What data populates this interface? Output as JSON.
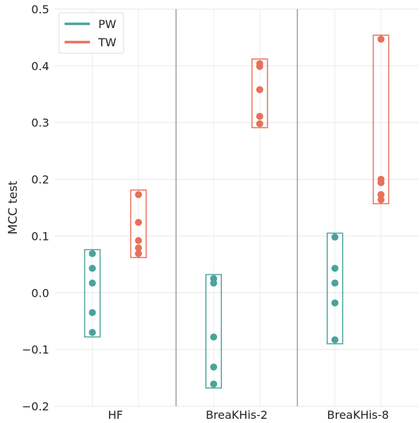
{
  "chart_data": {
    "type": "scatter",
    "title": "",
    "xlabel": "",
    "ylabel": "MCC test",
    "ylim": [
      -0.2,
      0.5
    ],
    "yticks": [
      -0.2,
      -0.1,
      0.0,
      0.1,
      0.2,
      0.3,
      0.4,
      0.5
    ],
    "ytick_labels": [
      "−0.2",
      "−0.1",
      "0.0",
      "0.1",
      "0.2",
      "0.3",
      "0.4",
      "0.5"
    ],
    "grid": true,
    "legend_position": "top-left",
    "categories": [
      "HF",
      "BreaKHis-2",
      "BreaKHis-8"
    ],
    "series": [
      {
        "name": "PW",
        "color": "#4aa39a",
        "values": [
          [
            0.069,
            0.043,
            0.017,
            -0.035,
            -0.07
          ],
          [
            0.025,
            0.017,
            -0.078,
            -0.131,
            -0.161
          ],
          [
            0.098,
            0.043,
            0.017,
            -0.018,
            -0.083
          ]
        ],
        "box": [
          [
            -0.078,
            0.076
          ],
          [
            -0.168,
            0.032
          ],
          [
            -0.09,
            0.105
          ]
        ]
      },
      {
        "name": "TW",
        "color": "#e8705a",
        "values": [
          [
            0.173,
            0.124,
            0.092,
            0.079,
            0.069
          ],
          [
            0.404,
            0.399,
            0.358,
            0.311,
            0.298
          ],
          [
            0.447,
            0.2,
            0.194,
            0.173,
            0.164
          ]
        ],
        "box": [
          [
            0.062,
            0.181
          ],
          [
            0.291,
            0.412
          ],
          [
            0.157,
            0.454
          ]
        ]
      }
    ]
  }
}
